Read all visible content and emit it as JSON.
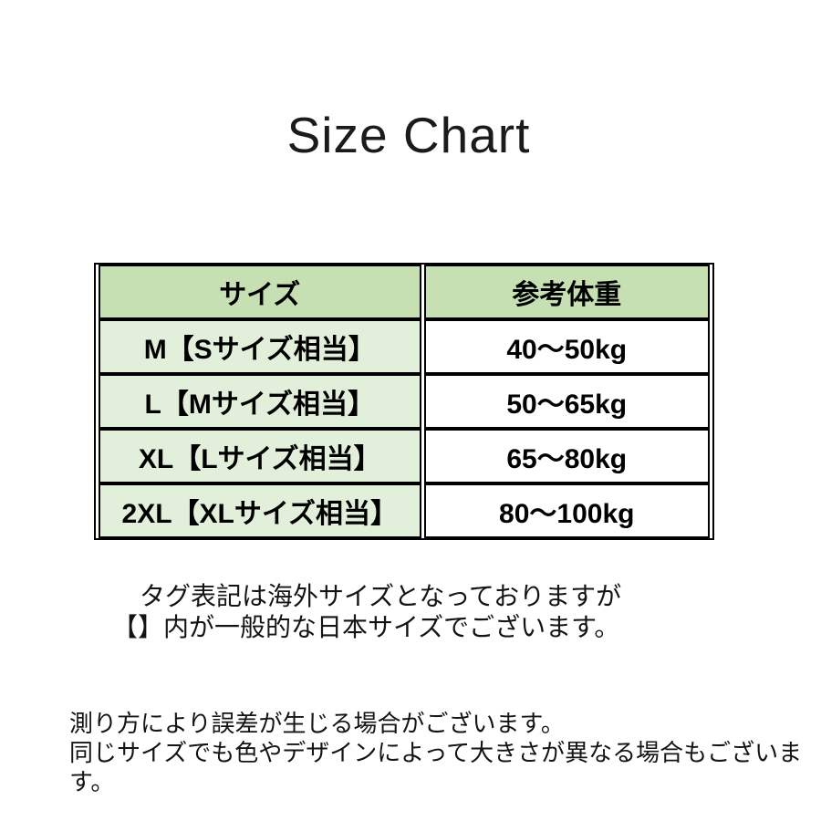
{
  "title": "Size Chart",
  "table": {
    "headers": [
      "サイズ",
      "参考体重"
    ],
    "rows": [
      {
        "size": "M【Sサイズ相当】",
        "weight": "40〜50kg"
      },
      {
        "size": "L【Mサイズ相当】",
        "weight": "50〜65kg"
      },
      {
        "size": "XL【Lサイズ相当】",
        "weight": "65〜80kg"
      },
      {
        "size": "2XL【XLサイズ相当】",
        "weight": "80〜100kg"
      }
    ]
  },
  "notes": {
    "tag_line1": "タグ表記は海外サイズとなっておりますが",
    "tag_line2": "【】内が一般的な日本サイズでございます。",
    "disclaimer_line1": "測り方により誤差が生じる場合がございます。",
    "disclaimer_line2": "同じサイズでも色やデザインによって大きさが異なる場合もございます。"
  },
  "colors": {
    "header_bg": "#c6e0b4",
    "size_column_bg": "#e2efda",
    "weight_column_bg": "#ffffff",
    "border": "#000000",
    "text": "#1a1a1a"
  },
  "chart_data": {
    "type": "table",
    "title": "Size Chart",
    "columns": [
      "サイズ",
      "参考体重"
    ],
    "rows": [
      [
        "M【Sサイズ相当】",
        "40〜50kg"
      ],
      [
        "L【Mサイズ相当】",
        "50〜65kg"
      ],
      [
        "XL【Lサイズ相当】",
        "65〜80kg"
      ],
      [
        "2XL【XLサイズ相当】",
        "80〜100kg"
      ]
    ],
    "sizes_tag": [
      "M",
      "L",
      "XL",
      "2XL"
    ],
    "sizes_japan_equivalent": [
      "S",
      "M",
      "L",
      "XL"
    ],
    "weight_ranges_kg": [
      [
        40,
        50
      ],
      [
        50,
        65
      ],
      [
        65,
        80
      ],
      [
        80,
        100
      ]
    ]
  }
}
